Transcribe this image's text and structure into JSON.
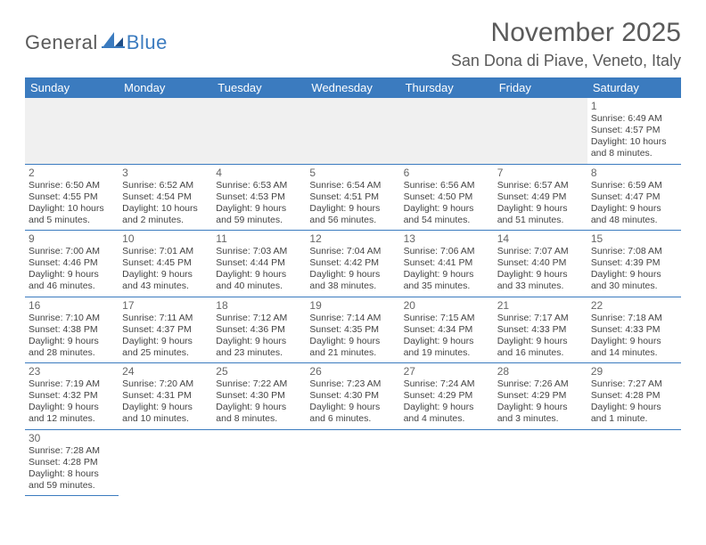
{
  "logo": {
    "part1": "General",
    "part2": "Blue"
  },
  "title": "November 2025",
  "location": "San Dona di Piave, Veneto, Italy",
  "weekdays": [
    "Sunday",
    "Monday",
    "Tuesday",
    "Wednesday",
    "Thursday",
    "Friday",
    "Saturday"
  ],
  "colors": {
    "header_bg": "#3b7bbf",
    "header_fg": "#ffffff",
    "rule": "#3b7bbf"
  },
  "weeks": [
    [
      null,
      null,
      null,
      null,
      null,
      null,
      {
        "n": "1",
        "sr": "6:49 AM",
        "ss": "4:57 PM",
        "dl": "10 hours and 8 minutes."
      }
    ],
    [
      {
        "n": "2",
        "sr": "6:50 AM",
        "ss": "4:55 PM",
        "dl": "10 hours and 5 minutes."
      },
      {
        "n": "3",
        "sr": "6:52 AM",
        "ss": "4:54 PM",
        "dl": "10 hours and 2 minutes."
      },
      {
        "n": "4",
        "sr": "6:53 AM",
        "ss": "4:53 PM",
        "dl": "9 hours and 59 minutes."
      },
      {
        "n": "5",
        "sr": "6:54 AM",
        "ss": "4:51 PM",
        "dl": "9 hours and 56 minutes."
      },
      {
        "n": "6",
        "sr": "6:56 AM",
        "ss": "4:50 PM",
        "dl": "9 hours and 54 minutes."
      },
      {
        "n": "7",
        "sr": "6:57 AM",
        "ss": "4:49 PM",
        "dl": "9 hours and 51 minutes."
      },
      {
        "n": "8",
        "sr": "6:59 AM",
        "ss": "4:47 PM",
        "dl": "9 hours and 48 minutes."
      }
    ],
    [
      {
        "n": "9",
        "sr": "7:00 AM",
        "ss": "4:46 PM",
        "dl": "9 hours and 46 minutes."
      },
      {
        "n": "10",
        "sr": "7:01 AM",
        "ss": "4:45 PM",
        "dl": "9 hours and 43 minutes."
      },
      {
        "n": "11",
        "sr": "7:03 AM",
        "ss": "4:44 PM",
        "dl": "9 hours and 40 minutes."
      },
      {
        "n": "12",
        "sr": "7:04 AM",
        "ss": "4:42 PM",
        "dl": "9 hours and 38 minutes."
      },
      {
        "n": "13",
        "sr": "7:06 AM",
        "ss": "4:41 PM",
        "dl": "9 hours and 35 minutes."
      },
      {
        "n": "14",
        "sr": "7:07 AM",
        "ss": "4:40 PM",
        "dl": "9 hours and 33 minutes."
      },
      {
        "n": "15",
        "sr": "7:08 AM",
        "ss": "4:39 PM",
        "dl": "9 hours and 30 minutes."
      }
    ],
    [
      {
        "n": "16",
        "sr": "7:10 AM",
        "ss": "4:38 PM",
        "dl": "9 hours and 28 minutes."
      },
      {
        "n": "17",
        "sr": "7:11 AM",
        "ss": "4:37 PM",
        "dl": "9 hours and 25 minutes."
      },
      {
        "n": "18",
        "sr": "7:12 AM",
        "ss": "4:36 PM",
        "dl": "9 hours and 23 minutes."
      },
      {
        "n": "19",
        "sr": "7:14 AM",
        "ss": "4:35 PM",
        "dl": "9 hours and 21 minutes."
      },
      {
        "n": "20",
        "sr": "7:15 AM",
        "ss": "4:34 PM",
        "dl": "9 hours and 19 minutes."
      },
      {
        "n": "21",
        "sr": "7:17 AM",
        "ss": "4:33 PM",
        "dl": "9 hours and 16 minutes."
      },
      {
        "n": "22",
        "sr": "7:18 AM",
        "ss": "4:33 PM",
        "dl": "9 hours and 14 minutes."
      }
    ],
    [
      {
        "n": "23",
        "sr": "7:19 AM",
        "ss": "4:32 PM",
        "dl": "9 hours and 12 minutes."
      },
      {
        "n": "24",
        "sr": "7:20 AM",
        "ss": "4:31 PM",
        "dl": "9 hours and 10 minutes."
      },
      {
        "n": "25",
        "sr": "7:22 AM",
        "ss": "4:30 PM",
        "dl": "9 hours and 8 minutes."
      },
      {
        "n": "26",
        "sr": "7:23 AM",
        "ss": "4:30 PM",
        "dl": "9 hours and 6 minutes."
      },
      {
        "n": "27",
        "sr": "7:24 AM",
        "ss": "4:29 PM",
        "dl": "9 hours and 4 minutes."
      },
      {
        "n": "28",
        "sr": "7:26 AM",
        "ss": "4:29 PM",
        "dl": "9 hours and 3 minutes."
      },
      {
        "n": "29",
        "sr": "7:27 AM",
        "ss": "4:28 PM",
        "dl": "9 hours and 1 minute."
      }
    ],
    [
      {
        "n": "30",
        "sr": "7:28 AM",
        "ss": "4:28 PM",
        "dl": "8 hours and 59 minutes."
      },
      "blank",
      "blank",
      "blank",
      "blank",
      "blank",
      "blank"
    ]
  ]
}
